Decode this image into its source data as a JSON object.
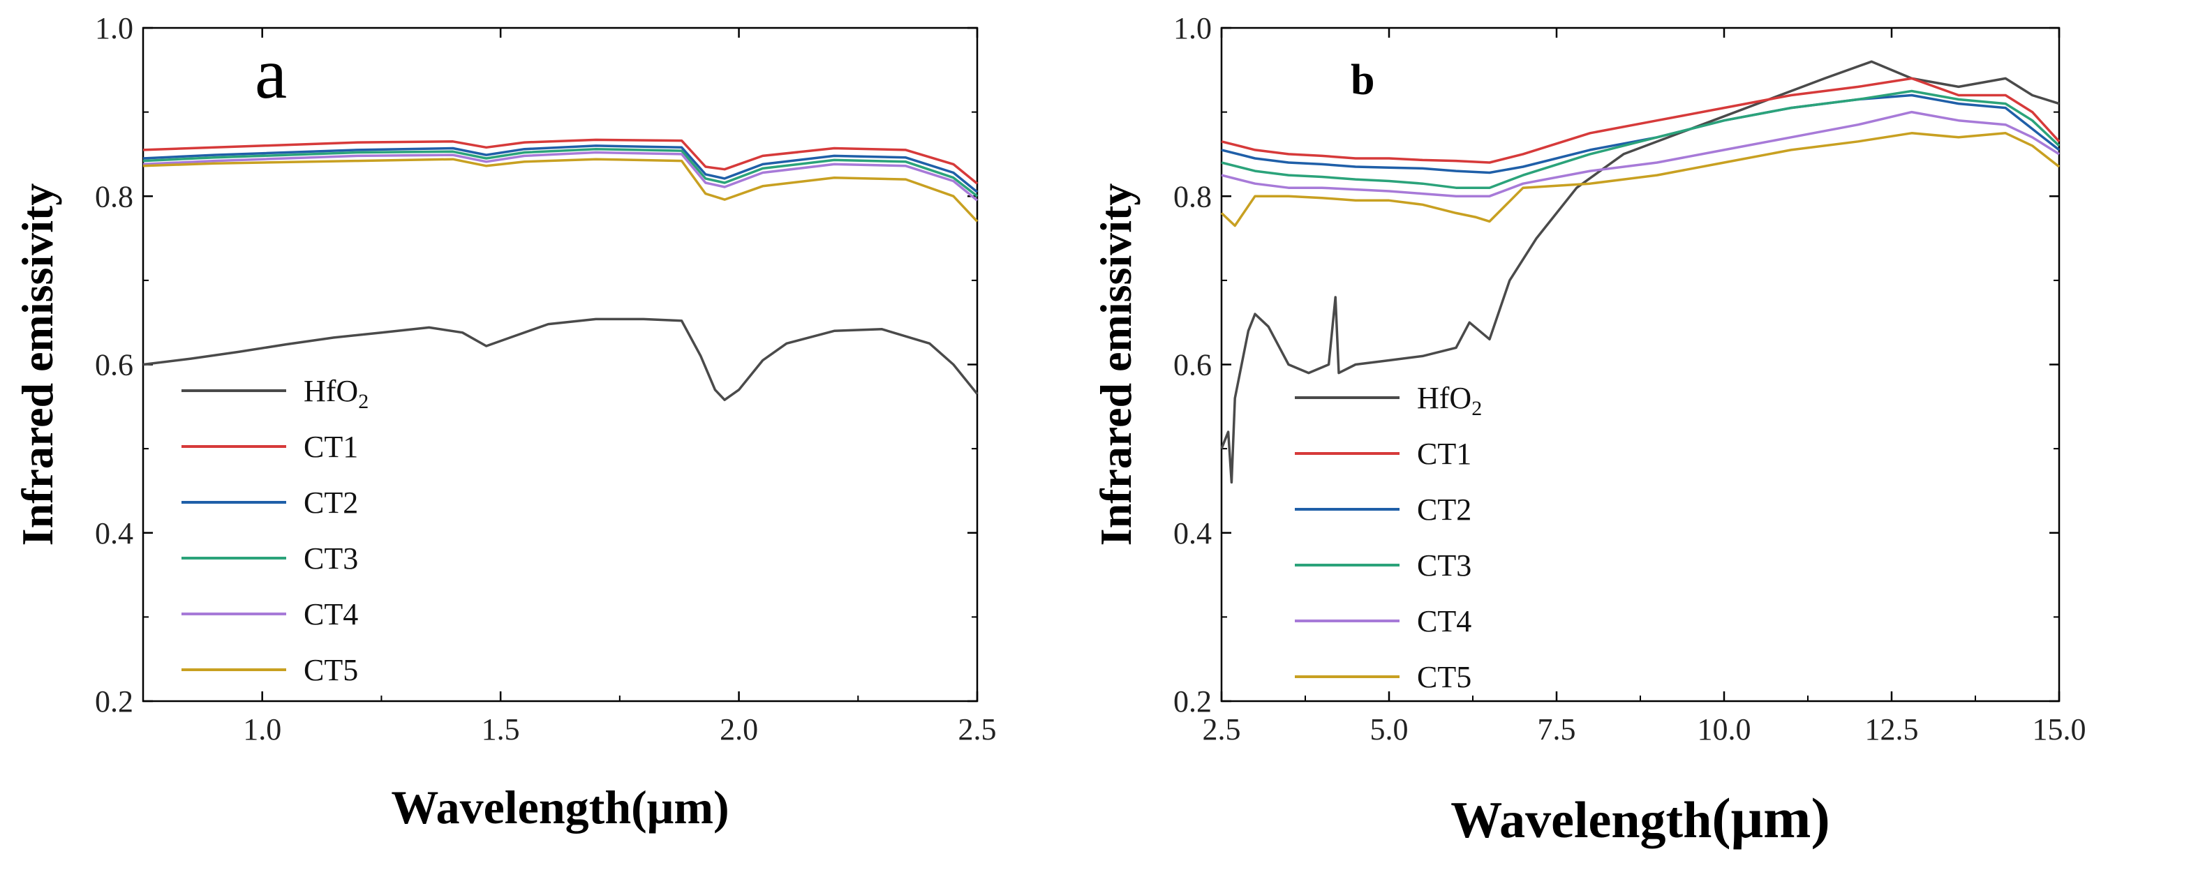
{
  "chart_data": [
    {
      "panel_label": "a",
      "type": "line",
      "xlabel": "Wavelength(μm)",
      "ylabel": "Infrared emissivity",
      "xlim": [
        0.75,
        2.5
      ],
      "ylim": [
        0.2,
        1.0
      ],
      "xticks": [
        1.0,
        1.5,
        2.0,
        2.5
      ],
      "xtick_labels": [
        "1.0",
        "1.5",
        "2.0",
        "2.5"
      ],
      "yticks": [
        0.2,
        0.4,
        0.6,
        0.8,
        1.0
      ],
      "ytick_labels": [
        "0.2",
        "0.4",
        "0.6",
        "0.8",
        "1.0"
      ],
      "legend_position": "lower-left",
      "series": [
        {
          "name": "HfO",
          "subscript": "2",
          "color": "#4a4a4a",
          "points": [
            [
              0.75,
              0.6
            ],
            [
              0.85,
              0.607
            ],
            [
              0.95,
              0.615
            ],
            [
              1.05,
              0.624
            ],
            [
              1.15,
              0.632
            ],
            [
              1.25,
              0.638
            ],
            [
              1.35,
              0.644
            ],
            [
              1.42,
              0.638
            ],
            [
              1.47,
              0.622
            ],
            [
              1.52,
              0.632
            ],
            [
              1.6,
              0.648
            ],
            [
              1.7,
              0.654
            ],
            [
              1.8,
              0.654
            ],
            [
              1.88,
              0.652
            ],
            [
              1.92,
              0.61
            ],
            [
              1.95,
              0.57
            ],
            [
              1.97,
              0.558
            ],
            [
              2.0,
              0.57
            ],
            [
              2.05,
              0.605
            ],
            [
              2.1,
              0.625
            ],
            [
              2.2,
              0.64
            ],
            [
              2.3,
              0.642
            ],
            [
              2.4,
              0.625
            ],
            [
              2.45,
              0.6
            ],
            [
              2.5,
              0.565
            ]
          ]
        },
        {
          "name": "CT1",
          "color": "#d63a3a",
          "points": [
            [
              0.75,
              0.855
            ],
            [
              0.9,
              0.858
            ],
            [
              1.0,
              0.86
            ],
            [
              1.2,
              0.864
            ],
            [
              1.4,
              0.865
            ],
            [
              1.47,
              0.858
            ],
            [
              1.55,
              0.864
            ],
            [
              1.7,
              0.867
            ],
            [
              1.88,
              0.866
            ],
            [
              1.93,
              0.835
            ],
            [
              1.97,
              0.832
            ],
            [
              2.05,
              0.848
            ],
            [
              2.2,
              0.857
            ],
            [
              2.35,
              0.855
            ],
            [
              2.45,
              0.838
            ],
            [
              2.5,
              0.815
            ]
          ]
        },
        {
          "name": "CT2",
          "color": "#1f5fa8",
          "points": [
            [
              0.75,
              0.845
            ],
            [
              0.9,
              0.849
            ],
            [
              1.0,
              0.851
            ],
            [
              1.2,
              0.855
            ],
            [
              1.4,
              0.857
            ],
            [
              1.47,
              0.849
            ],
            [
              1.55,
              0.856
            ],
            [
              1.7,
              0.86
            ],
            [
              1.88,
              0.858
            ],
            [
              1.93,
              0.826
            ],
            [
              1.97,
              0.821
            ],
            [
              2.05,
              0.838
            ],
            [
              2.2,
              0.848
            ],
            [
              2.35,
              0.846
            ],
            [
              2.45,
              0.828
            ],
            [
              2.5,
              0.805
            ]
          ]
        },
        {
          "name": "CT3",
          "color": "#2ba37a",
          "points": [
            [
              0.75,
              0.842
            ],
            [
              0.9,
              0.846
            ],
            [
              1.0,
              0.848
            ],
            [
              1.2,
              0.852
            ],
            [
              1.4,
              0.853
            ],
            [
              1.47,
              0.845
            ],
            [
              1.55,
              0.852
            ],
            [
              1.7,
              0.856
            ],
            [
              1.88,
              0.854
            ],
            [
              1.93,
              0.821
            ],
            [
              1.97,
              0.816
            ],
            [
              2.05,
              0.833
            ],
            [
              2.2,
              0.843
            ],
            [
              2.35,
              0.841
            ],
            [
              2.45,
              0.822
            ],
            [
              2.5,
              0.8
            ]
          ]
        },
        {
          "name": "CT4",
          "color": "#a77ad8",
          "points": [
            [
              0.75,
              0.838
            ],
            [
              0.9,
              0.842
            ],
            [
              1.0,
              0.844
            ],
            [
              1.2,
              0.848
            ],
            [
              1.4,
              0.849
            ],
            [
              1.47,
              0.841
            ],
            [
              1.55,
              0.848
            ],
            [
              1.7,
              0.852
            ],
            [
              1.88,
              0.85
            ],
            [
              1.93,
              0.816
            ],
            [
              1.97,
              0.811
            ],
            [
              2.05,
              0.828
            ],
            [
              2.2,
              0.838
            ],
            [
              2.35,
              0.836
            ],
            [
              2.45,
              0.818
            ],
            [
              2.5,
              0.795
            ]
          ]
        },
        {
          "name": "CT5",
          "color": "#c8a021",
          "points": [
            [
              0.75,
              0.836
            ],
            [
              0.9,
              0.839
            ],
            [
              1.0,
              0.84
            ],
            [
              1.2,
              0.842
            ],
            [
              1.4,
              0.844
            ],
            [
              1.47,
              0.836
            ],
            [
              1.55,
              0.841
            ],
            [
              1.7,
              0.844
            ],
            [
              1.88,
              0.842
            ],
            [
              1.93,
              0.803
            ],
            [
              1.97,
              0.796
            ],
            [
              2.05,
              0.812
            ],
            [
              2.2,
              0.822
            ],
            [
              2.35,
              0.82
            ],
            [
              2.45,
              0.8
            ],
            [
              2.5,
              0.77
            ]
          ]
        }
      ]
    },
    {
      "panel_label": "b",
      "type": "line",
      "xlabel": "Wavelength",
      "xlabel_unit": "(μm)",
      "ylabel": "Infrared emissivity",
      "xlim": [
        2.5,
        15.0
      ],
      "ylim": [
        0.2,
        1.0
      ],
      "xticks": [
        2.5,
        5.0,
        7.5,
        10.0,
        12.5,
        15.0
      ],
      "xtick_labels": [
        "2.5",
        "5.0",
        "7.5",
        "10.0",
        "12.5",
        "15.0"
      ],
      "yticks": [
        0.2,
        0.4,
        0.6,
        0.8,
        1.0
      ],
      "ytick_labels": [
        "0.2",
        "0.4",
        "0.6",
        "0.8",
        "1.0"
      ],
      "legend_position": "lower-left",
      "series": [
        {
          "name": "HfO",
          "subscript": "2",
          "color": "#4a4a4a",
          "points": [
            [
              2.5,
              0.5
            ],
            [
              2.6,
              0.52
            ],
            [
              2.65,
              0.46
            ],
            [
              2.7,
              0.56
            ],
            [
              2.8,
              0.6
            ],
            [
              2.9,
              0.64
            ],
            [
              3.0,
              0.66
            ],
            [
              3.2,
              0.645
            ],
            [
              3.5,
              0.6
            ],
            [
              3.8,
              0.59
            ],
            [
              4.1,
              0.6
            ],
            [
              4.2,
              0.68
            ],
            [
              4.25,
              0.59
            ],
            [
              4.5,
              0.6
            ],
            [
              5.0,
              0.605
            ],
            [
              5.5,
              0.61
            ],
            [
              6.0,
              0.62
            ],
            [
              6.2,
              0.65
            ],
            [
              6.5,
              0.63
            ],
            [
              6.8,
              0.7
            ],
            [
              7.2,
              0.75
            ],
            [
              7.8,
              0.81
            ],
            [
              8.5,
              0.85
            ],
            [
              9.5,
              0.88
            ],
            [
              10.5,
              0.91
            ],
            [
              11.5,
              0.94
            ],
            [
              12.2,
              0.96
            ],
            [
              12.8,
              0.94
            ],
            [
              13.5,
              0.93
            ],
            [
              14.2,
              0.94
            ],
            [
              14.6,
              0.92
            ],
            [
              15.0,
              0.91
            ]
          ]
        },
        {
          "name": "CT1",
          "color": "#d63a3a",
          "points": [
            [
              2.5,
              0.865
            ],
            [
              3.0,
              0.855
            ],
            [
              3.5,
              0.85
            ],
            [
              4.0,
              0.848
            ],
            [
              4.5,
              0.845
            ],
            [
              5.0,
              0.845
            ],
            [
              5.5,
              0.843
            ],
            [
              6.0,
              0.842
            ],
            [
              6.5,
              0.84
            ],
            [
              7.0,
              0.85
            ],
            [
              8.0,
              0.875
            ],
            [
              9.0,
              0.89
            ],
            [
              10.0,
              0.905
            ],
            [
              11.0,
              0.92
            ],
            [
              12.0,
              0.93
            ],
            [
              12.8,
              0.94
            ],
            [
              13.5,
              0.92
            ],
            [
              14.2,
              0.92
            ],
            [
              14.6,
              0.9
            ],
            [
              15.0,
              0.865
            ]
          ]
        },
        {
          "name": "CT2",
          "color": "#1f5fa8",
          "points": [
            [
              2.5,
              0.855
            ],
            [
              3.0,
              0.845
            ],
            [
              3.5,
              0.84
            ],
            [
              4.0,
              0.838
            ],
            [
              4.5,
              0.835
            ],
            [
              5.0,
              0.834
            ],
            [
              5.5,
              0.833
            ],
            [
              6.0,
              0.83
            ],
            [
              6.5,
              0.828
            ],
            [
              7.0,
              0.835
            ],
            [
              8.0,
              0.855
            ],
            [
              9.0,
              0.87
            ],
            [
              10.0,
              0.89
            ],
            [
              11.0,
              0.905
            ],
            [
              12.0,
              0.915
            ],
            [
              12.8,
              0.92
            ],
            [
              13.5,
              0.91
            ],
            [
              14.2,
              0.905
            ],
            [
              14.6,
              0.88
            ],
            [
              15.0,
              0.855
            ]
          ]
        },
        {
          "name": "CT3",
          "color": "#2ba37a",
          "points": [
            [
              2.5,
              0.84
            ],
            [
              3.0,
              0.83
            ],
            [
              3.5,
              0.825
            ],
            [
              4.0,
              0.823
            ],
            [
              4.5,
              0.82
            ],
            [
              5.0,
              0.818
            ],
            [
              5.5,
              0.815
            ],
            [
              6.0,
              0.81
            ],
            [
              6.5,
              0.81
            ],
            [
              7.0,
              0.825
            ],
            [
              8.0,
              0.85
            ],
            [
              9.0,
              0.87
            ],
            [
              10.0,
              0.89
            ],
            [
              11.0,
              0.905
            ],
            [
              12.0,
              0.915
            ],
            [
              12.8,
              0.925
            ],
            [
              13.5,
              0.915
            ],
            [
              14.2,
              0.91
            ],
            [
              14.6,
              0.89
            ],
            [
              15.0,
              0.86
            ]
          ]
        },
        {
          "name": "CT4",
          "color": "#a77ad8",
          "points": [
            [
              2.5,
              0.825
            ],
            [
              3.0,
              0.815
            ],
            [
              3.5,
              0.81
            ],
            [
              4.0,
              0.81
            ],
            [
              4.5,
              0.808
            ],
            [
              5.0,
              0.806
            ],
            [
              5.5,
              0.803
            ],
            [
              6.0,
              0.8
            ],
            [
              6.5,
              0.8
            ],
            [
              7.0,
              0.815
            ],
            [
              8.0,
              0.83
            ],
            [
              9.0,
              0.84
            ],
            [
              10.0,
              0.855
            ],
            [
              11.0,
              0.87
            ],
            [
              12.0,
              0.885
            ],
            [
              12.8,
              0.9
            ],
            [
              13.5,
              0.89
            ],
            [
              14.2,
              0.885
            ],
            [
              14.6,
              0.87
            ],
            [
              15.0,
              0.85
            ]
          ]
        },
        {
          "name": "CT5",
          "color": "#c8a021",
          "points": [
            [
              2.5,
              0.78
            ],
            [
              2.7,
              0.765
            ],
            [
              3.0,
              0.8
            ],
            [
              3.5,
              0.8
            ],
            [
              4.0,
              0.798
            ],
            [
              4.5,
              0.795
            ],
            [
              5.0,
              0.795
            ],
            [
              5.5,
              0.79
            ],
            [
              6.0,
              0.78
            ],
            [
              6.3,
              0.775
            ],
            [
              6.5,
              0.77
            ],
            [
              7.0,
              0.81
            ],
            [
              8.0,
              0.815
            ],
            [
              9.0,
              0.825
            ],
            [
              10.0,
              0.84
            ],
            [
              11.0,
              0.855
            ],
            [
              12.0,
              0.865
            ],
            [
              12.8,
              0.875
            ],
            [
              13.5,
              0.87
            ],
            [
              14.2,
              0.875
            ],
            [
              14.6,
              0.86
            ],
            [
              15.0,
              0.835
            ]
          ]
        }
      ]
    }
  ]
}
